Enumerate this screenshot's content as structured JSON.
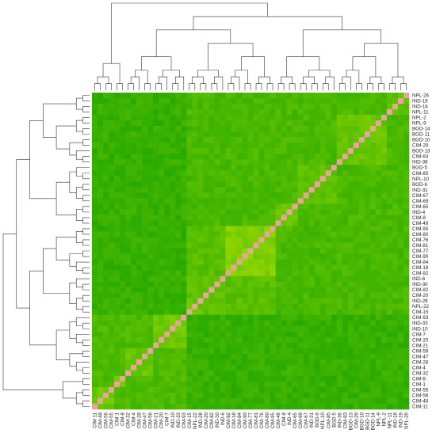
{
  "chart_data": {
    "type": "heatmap",
    "title": "",
    "xlabel": "",
    "ylabel": "",
    "color_scale": {
      "low": "#1fa600",
      "mid": "#7fcf00",
      "high": "#f2f200",
      "diagonal": "#e8a59c"
    },
    "value_range": [
      0,
      1
    ],
    "column_labels": [
      "CIM-11",
      "CIM-48",
      "CIM-56",
      "CIM-55",
      "CIM-1",
      "CIM-8",
      "CIM-32",
      "CIM-4",
      "CIM-28",
      "CIM-47",
      "CIM-59",
      "CIM-21",
      "CIM-20",
      "CIM-7",
      "IND-10",
      "IND-33",
      "CIM-93",
      "CIM-15",
      "NPL-22",
      "IND-28",
      "CIM-20",
      "CIM-82",
      "IND-30",
      "IND-6",
      "CIM-92",
      "CIM-18",
      "CIM-84",
      "CIM-90",
      "CIM-77",
      "CIM-81",
      "CIM-76",
      "CIM-80",
      "CIM-95",
      "CIM-49",
      "CIM-8",
      "IND-4",
      "CIM-65",
      "CIM-69",
      "CIM-67",
      "IND-31",
      "BGD-6",
      "NPL-10",
      "CIM-85",
      "BGD-5",
      "IND-36",
      "CIM-83",
      "BGD-13",
      "CIM-29",
      "BGD-10",
      "BGD-11",
      "BGD-14",
      "NPL-9",
      "NPL-2",
      "NPL-11",
      "IND-18",
      "IND-19",
      "NPL-26"
    ],
    "row_labels": [
      "NPL-26",
      "IND-19",
      "IND-18",
      "NPL-11",
      "NPL-2",
      "NPL-9",
      "BGD-14",
      "BGD-11",
      "BGD-10",
      "CIM-29",
      "BGD-13",
      "CIM-83",
      "IND-36",
      "BGD-5",
      "CIM-85",
      "NPL-10",
      "BGD-6",
      "IND-31",
      "CIM-67",
      "CIM-69",
      "CIM-65",
      "IND-4",
      "CIM-8",
      "CIM-49",
      "CIM-95",
      "CIM-80",
      "CIM-76",
      "CIM-81",
      "CIM-77",
      "CIM-90",
      "CIM-84",
      "CIM-18",
      "CIM-92",
      "IND-6",
      "IND-30",
      "CIM-82",
      "CIM-20",
      "IND-28",
      "NPL-22",
      "CIM-15",
      "CIM-93",
      "IND-33",
      "IND-10",
      "CIM-7",
      "CIM-20",
      "CIM-21",
      "CIM-59",
      "CIM-47",
      "CIM-28",
      "CIM-4",
      "CIM-32",
      "CIM-8",
      "CIM-1",
      "CIM-55",
      "CIM-56",
      "CIM-48",
      "CIM-11"
    ],
    "clusters": [
      {
        "range": [
          0,
          4
        ],
        "value": 0.32
      },
      {
        "range": [
          4,
          13
        ],
        "value": 0.38
      },
      {
        "range": [
          13,
          20
        ],
        "value": 0.34
      },
      {
        "range": [
          20,
          24
        ],
        "value": 0.4
      },
      {
        "range": [
          24,
          33
        ],
        "value": 0.5
      },
      {
        "range": [
          33,
          40
        ],
        "value": 0.36
      },
      {
        "range": [
          40,
          46
        ],
        "value": 0.42
      },
      {
        "range": [
          46,
          51
        ],
        "value": 0.38
      },
      {
        "range": [
          51,
          53
        ],
        "value": 0.45
      },
      {
        "range": [
          53,
          57
        ],
        "value": 0.4
      }
    ],
    "superclusters": [
      {
        "range": [
          0,
          40
        ],
        "value": 0.22
      },
      {
        "range": [
          40,
          57
        ],
        "value": 0.24
      },
      {
        "range": [
          24,
          40
        ],
        "value": 0.3
      }
    ],
    "background_value": 0.12
  }
}
